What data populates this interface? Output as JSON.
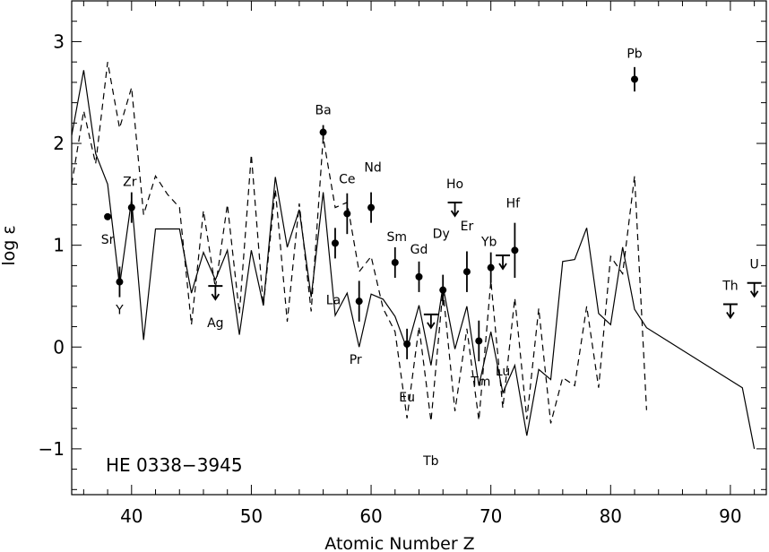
{
  "chart_data": {
    "type": "scatter",
    "title": "",
    "star_label": "HE 0338−3945",
    "xlabel": "Atomic Number Z",
    "ylabel": "log ε",
    "xlim": [
      35,
      93
    ],
    "ylim": [
      -1.45,
      3.4
    ],
    "x_ticks": [
      40,
      50,
      60,
      70,
      80,
      90
    ],
    "y_ticks": [
      -1,
      0,
      1,
      2,
      3
    ],
    "y_tick_labels": [
      "−1",
      "0",
      "1",
      "2",
      "3"
    ],
    "grid": false,
    "observed": [
      {
        "label": "Sr",
        "z": 38,
        "y": 1.28,
        "err": 0.0
      },
      {
        "label": "Y",
        "z": 39,
        "y": 0.64,
        "err": 0.15
      },
      {
        "label": "Zr",
        "z": 40,
        "y": 1.37,
        "err": 0.15
      },
      {
        "label": "Ba",
        "z": 56,
        "y": 2.11,
        "err": 0.07
      },
      {
        "label": "La",
        "z": 57,
        "y": 1.02,
        "err": 0.15
      },
      {
        "label": "Ce",
        "z": 58,
        "y": 1.31,
        "err": 0.2
      },
      {
        "label": "Pr",
        "z": 59,
        "y": 0.45,
        "err": 0.2
      },
      {
        "label": "Nd",
        "z": 60,
        "y": 1.37,
        "err": 0.15
      },
      {
        "label": "Sm",
        "z": 62,
        "y": 0.83,
        "err": 0.15
      },
      {
        "label": "Eu",
        "z": 63,
        "y": 0.03,
        "err": 0.15
      },
      {
        "label": "Gd",
        "z": 64,
        "y": 0.69,
        "err": 0.15
      },
      {
        "label": "Dy",
        "z": 66,
        "y": 0.56,
        "err": 0.15
      },
      {
        "label": "Er",
        "z": 68,
        "y": 0.74,
        "err": 0.2
      },
      {
        "label": "Tm",
        "z": 69,
        "y": 0.06,
        "err": 0.2
      },
      {
        "label": "Yb",
        "z": 70,
        "y": 0.78,
        "err": 0.15
      },
      {
        "label": "Hf",
        "z": 72,
        "y": 0.95,
        "err": 0.27
      },
      {
        "label": "Pb",
        "z": 82,
        "y": 2.63,
        "err": 0.12
      }
    ],
    "upper_limits": [
      {
        "label": "Ag",
        "z": 47,
        "y": 0.6
      },
      {
        "label": "Tb",
        "z": 65,
        "y": 0.32
      },
      {
        "label": "Ho",
        "z": 67,
        "y": 1.42
      },
      {
        "label": "Lu",
        "z": 71,
        "y": 0.9
      },
      {
        "label": "Th",
        "z": 90,
        "y": 0.42
      },
      {
        "label": "U",
        "z": 92,
        "y": 0.63
      }
    ],
    "series": [
      {
        "style": "solid",
        "x": [
          35,
          36,
          37,
          38,
          39,
          40,
          41,
          42,
          43,
          44,
          45,
          46,
          47,
          48,
          49,
          50,
          51,
          52,
          53,
          54,
          55,
          56,
          57,
          58,
          59,
          60,
          61,
          62,
          63,
          64,
          65,
          66,
          67,
          68,
          69,
          70,
          71,
          72,
          73,
          74,
          75,
          76,
          77,
          78,
          79,
          80,
          81,
          82,
          83,
          91,
          92
        ],
        "y": [
          2.08,
          2.72,
          1.9,
          1.6,
          0.6,
          1.45,
          0.07,
          1.16,
          1.16,
          1.16,
          0.53,
          0.93,
          0.66,
          0.95,
          0.12,
          0.95,
          0.41,
          1.67,
          0.98,
          1.35,
          0.49,
          1.52,
          0.31,
          0.53,
          0.0,
          0.52,
          0.47,
          0.3,
          -0.02,
          0.41,
          -0.18,
          0.6,
          -0.02,
          0.4,
          -0.38,
          0.15,
          -0.45,
          -0.18,
          -0.87,
          -0.22,
          -0.32,
          0.84,
          0.86,
          1.17,
          0.33,
          0.22,
          0.98,
          0.37,
          0.19,
          -0.4,
          -1.0
        ]
      },
      {
        "style": "dashed",
        "x": [
          35,
          36,
          37,
          38,
          39,
          40,
          41,
          42,
          43,
          44,
          45,
          46,
          47,
          48,
          49,
          50,
          51,
          52,
          53,
          54,
          55,
          56,
          57,
          58,
          59,
          60,
          61,
          62,
          63,
          64,
          65,
          66,
          67,
          68,
          69,
          70,
          71,
          72,
          73,
          74,
          75,
          76,
          77,
          78,
          79,
          80,
          81,
          82,
          83
        ],
        "y": [
          1.6,
          2.32,
          1.8,
          2.8,
          2.15,
          2.55,
          1.3,
          1.68,
          1.5,
          1.37,
          0.22,
          1.34,
          0.58,
          1.4,
          0.33,
          1.89,
          0.4,
          1.55,
          0.25,
          1.41,
          0.35,
          2.06,
          1.37,
          1.42,
          0.74,
          0.89,
          0.38,
          0.15,
          -0.7,
          0.2,
          -0.73,
          0.56,
          -0.63,
          0.18,
          -0.72,
          0.65,
          -0.6,
          0.48,
          -0.71,
          0.38,
          -0.75,
          -0.3,
          -0.38,
          0.4,
          -0.4,
          0.89,
          0.72,
          1.68,
          -0.62
        ]
      }
    ]
  }
}
